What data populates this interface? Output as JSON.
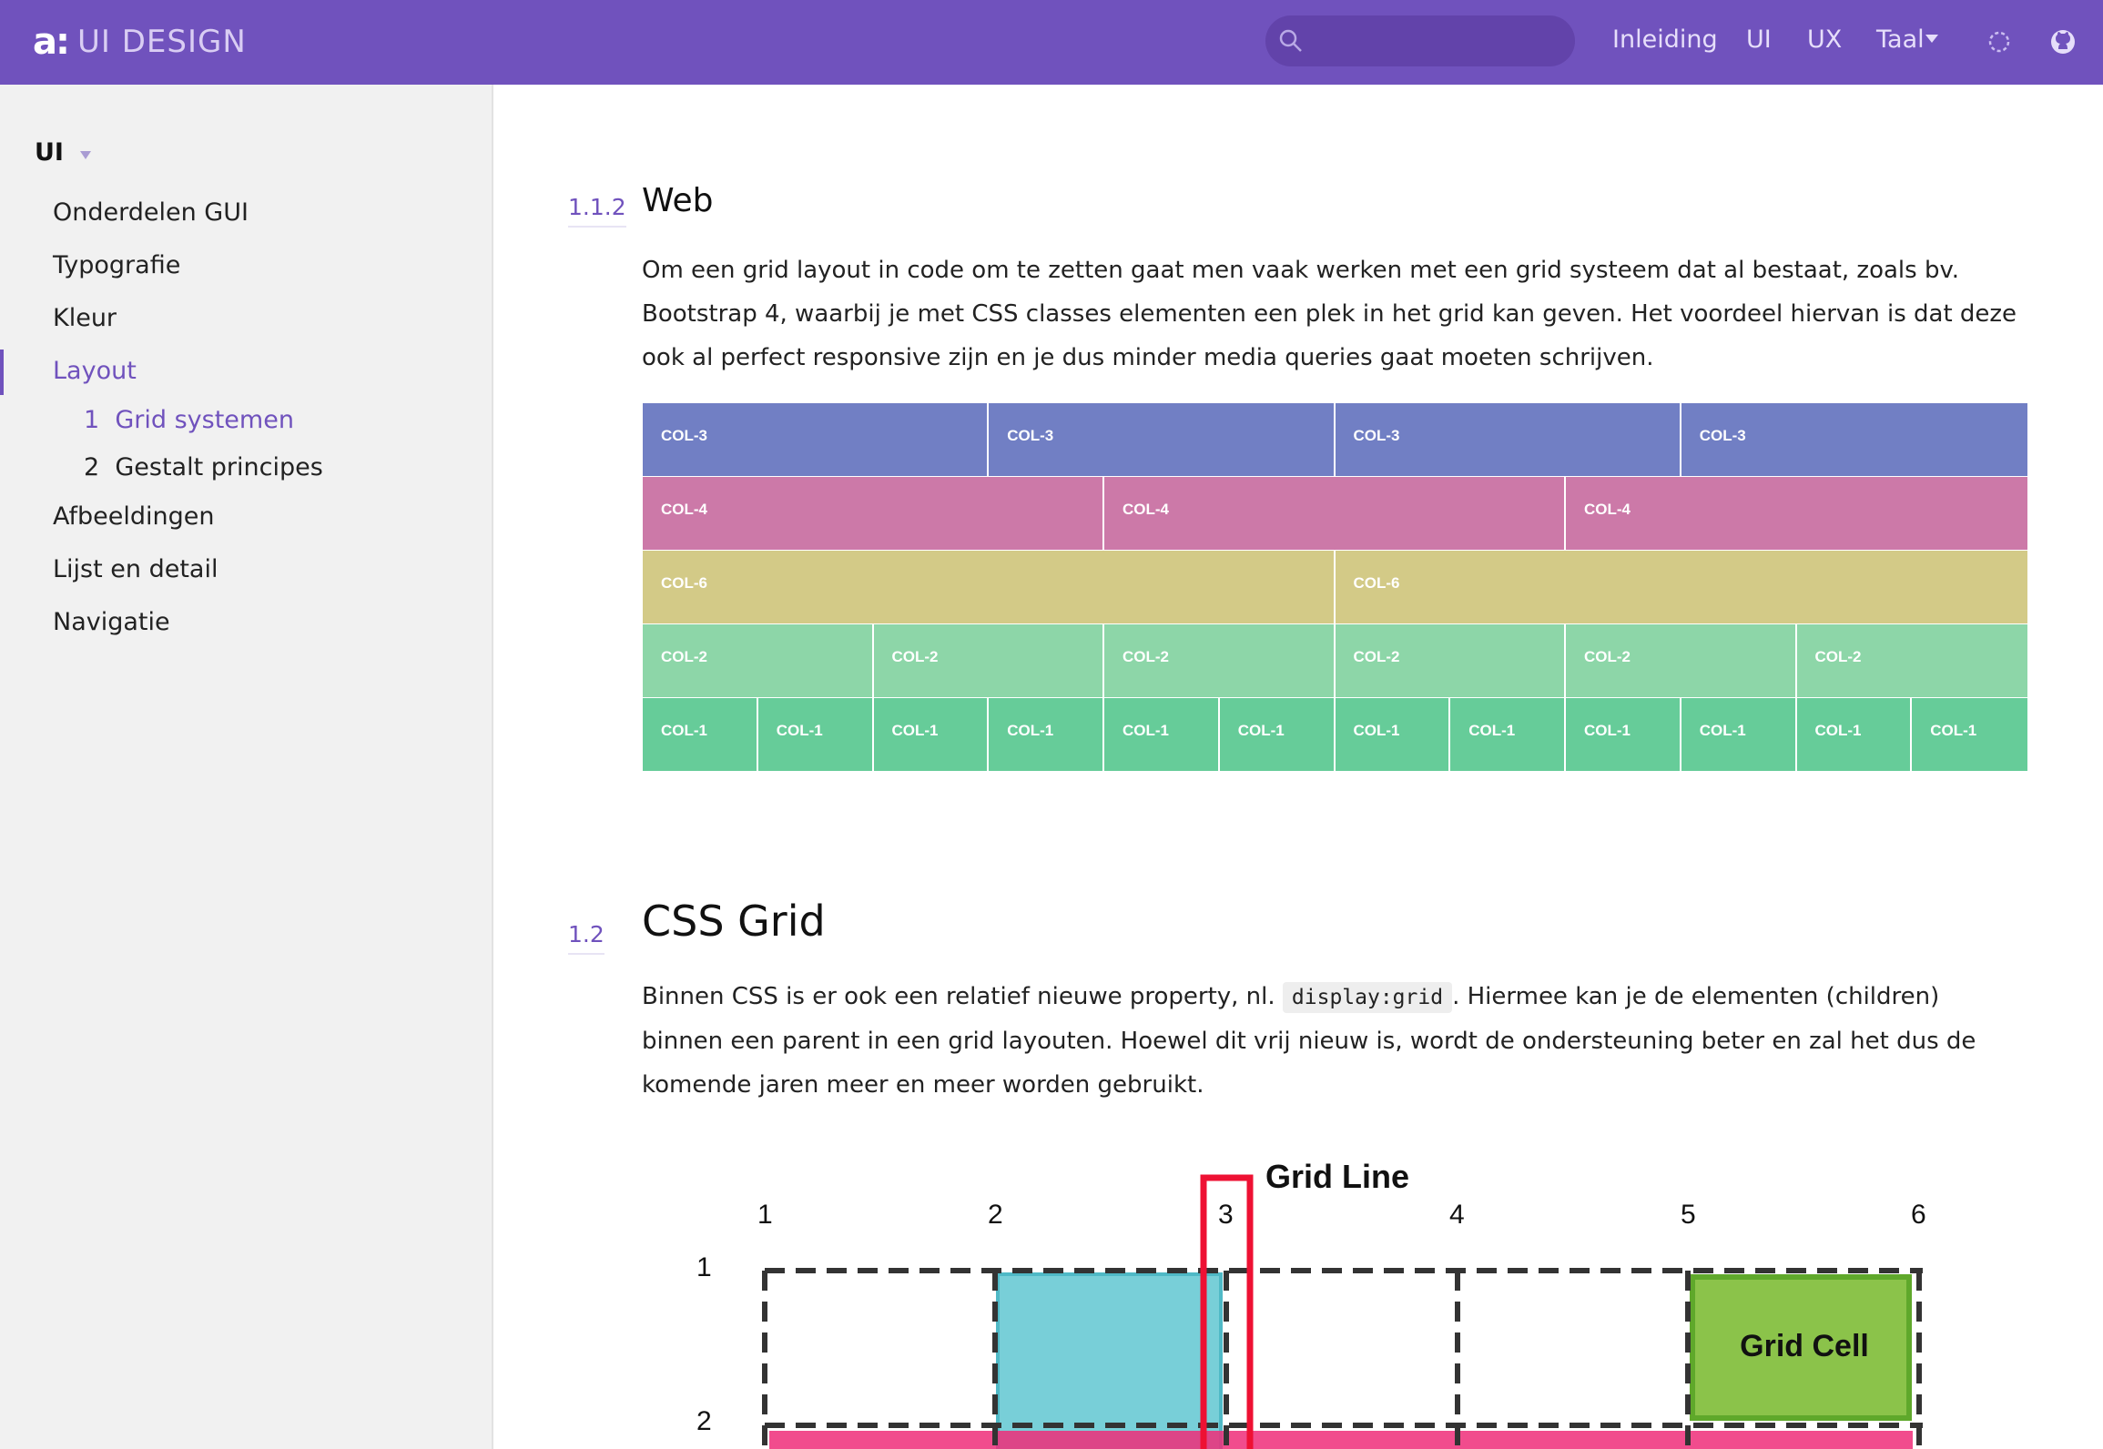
{
  "topbar": {
    "logo_mark": "a:",
    "logo_text": "UI DESIGN",
    "search_placeholder": "",
    "nav": [
      "Inleiding",
      "UI",
      "UX",
      "Taal"
    ],
    "icons": [
      "search-icon",
      "theme-icon",
      "github-icon"
    ],
    "colors": {
      "bar": "#7052bd",
      "search": "#6243aa"
    }
  },
  "sidebar": {
    "section": "UI",
    "items": [
      {
        "label": "Onderdelen GUI"
      },
      {
        "label": "Typografie"
      },
      {
        "label": "Kleur"
      },
      {
        "label": "Layout"
      },
      {
        "label": "Afbeeldingen"
      },
      {
        "label": "Lijst en detail"
      },
      {
        "label": "Navigatie"
      }
    ],
    "subitems": [
      {
        "num": "1",
        "label": "Grid systemen"
      },
      {
        "num": "2",
        "label": "Gestalt principes"
      }
    ],
    "active_item": "Layout",
    "active_subitem": "Grid systemen"
  },
  "main": {
    "web": {
      "number": "1.1.2",
      "title": "Web",
      "text": "Om een grid layout in code om te zetten gaat men vaak werken met een grid systeem dat al bestaat, zoals bv. Bootstrap 4, waarbij je met CSS classes elementen een plek in het grid kan geven. Het voordeel hiervan is dat deze ook al perfect responsive zijn en je dus minder media queries gaat moeten schrijven."
    },
    "bootstrap_grid": {
      "rows": [
        {
          "color": "#717fc4",
          "span": 3,
          "label": "COL-3",
          "count": 4
        },
        {
          "color": "#cc79a8",
          "span": 4,
          "label": "COL-4",
          "count": 3
        },
        {
          "color": "#d3ca87",
          "span": 6,
          "label": "COL-6",
          "count": 2
        },
        {
          "color": "#8dd6a8",
          "span": 2,
          "label": "COL-2",
          "count": 6
        },
        {
          "color": "#66cc99",
          "span": 1,
          "label": "COL-1",
          "count": 12
        }
      ]
    },
    "cssgrid": {
      "number": "1.2",
      "title": "CSS Grid",
      "text_before": "Binnen CSS is er ook een relatief nieuwe property, nl. ",
      "code": "display:grid",
      "text_after": ". Hiermee kan je de elementen (children) binnen een parent in een grid layouten. Hoewel dit vrij nieuw is, wordt de ondersteuning beter en zal het dus de komende jaren meer en meer worden gebruikt."
    },
    "diagram": {
      "grid_line_label": "Grid Line",
      "grid_cell_label": "Grid Cell",
      "column_numbers": [
        "1",
        "2",
        "3",
        "4",
        "5",
        "6"
      ],
      "row_numbers": [
        "1",
        "2"
      ],
      "colors": {
        "line": "#ee1133",
        "cell": "#8bc34a",
        "cell_border": "#5fa82b",
        "area": "#78cfd8",
        "row": "#ee2d79"
      }
    }
  }
}
